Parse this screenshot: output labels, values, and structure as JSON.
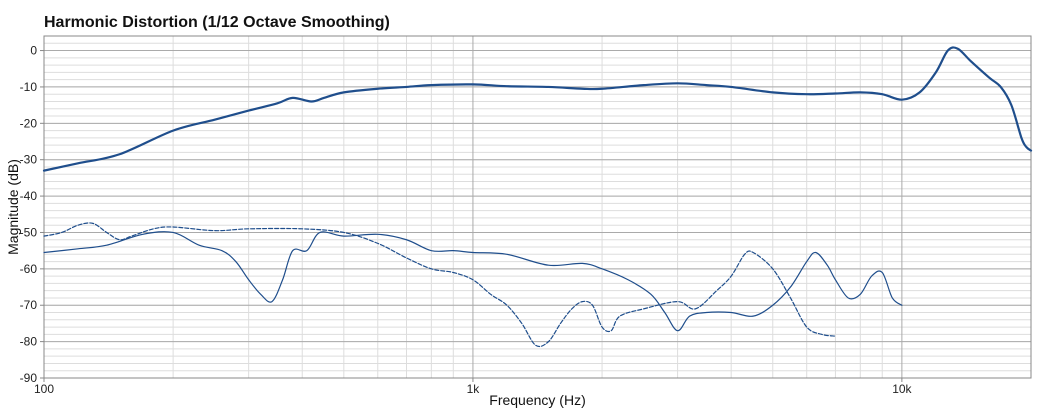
{
  "chart_data": {
    "type": "line",
    "title": "Harmonic Distortion (1/12 Octave Smoothing)",
    "xlabel": "Frequency (Hz)",
    "ylabel": "Magnitude (dB)",
    "x_scale": "log",
    "xlim": [
      100,
      20000
    ],
    "ylim": [
      -90,
      4
    ],
    "grid": true,
    "legend": "none",
    "x_ticks": [
      {
        "value": 100,
        "label": "100"
      },
      {
        "value": 1000,
        "label": "1k"
      },
      {
        "value": 10000,
        "label": "10k"
      }
    ],
    "y_ticks": [
      0,
      -10,
      -20,
      -30,
      -40,
      -50,
      -60,
      -70,
      -80,
      -90
    ],
    "colors": {
      "series": "#1f4e8c",
      "grid_major": "#aaaaaa",
      "grid_minor": "#dddddd",
      "frame": "#888888"
    },
    "series": [
      {
        "style": "solid-thick",
        "points": [
          [
            100,
            -33
          ],
          [
            120,
            -31
          ],
          [
            150,
            -28.5
          ],
          [
            200,
            -22
          ],
          [
            250,
            -19
          ],
          [
            300,
            -16.5
          ],
          [
            350,
            -14.5
          ],
          [
            380,
            -13
          ],
          [
            420,
            -14
          ],
          [
            450,
            -13
          ],
          [
            500,
            -11.5
          ],
          [
            600,
            -10.5
          ],
          [
            700,
            -10
          ],
          [
            800,
            -9.5
          ],
          [
            1000,
            -9.3
          ],
          [
            1200,
            -9.8
          ],
          [
            1500,
            -10
          ],
          [
            1800,
            -10.5
          ],
          [
            2000,
            -10.5
          ],
          [
            2500,
            -9.5
          ],
          [
            3000,
            -9
          ],
          [
            3500,
            -9.5
          ],
          [
            4000,
            -10
          ],
          [
            5000,
            -11.5
          ],
          [
            6000,
            -12
          ],
          [
            7000,
            -11.8
          ],
          [
            8000,
            -11.5
          ],
          [
            9000,
            -12
          ],
          [
            10000,
            -13.5
          ],
          [
            11000,
            -11.5
          ],
          [
            12000,
            -6
          ],
          [
            12800,
            0
          ],
          [
            13500,
            0.5
          ],
          [
            14500,
            -3
          ],
          [
            16000,
            -7.5
          ],
          [
            17000,
            -10
          ],
          [
            18000,
            -15
          ],
          [
            19000,
            -24
          ],
          [
            19500,
            -26.5
          ],
          [
            20000,
            -27.5
          ]
        ]
      },
      {
        "style": "solid-thin",
        "points": [
          [
            100,
            -55.5
          ],
          [
            120,
            -54.5
          ],
          [
            140,
            -53.5
          ],
          [
            170,
            -50.5
          ],
          [
            200,
            -50
          ],
          [
            230,
            -53.5
          ],
          [
            260,
            -55
          ],
          [
            280,
            -58
          ],
          [
            300,
            -63
          ],
          [
            320,
            -67
          ],
          [
            340,
            -69
          ],
          [
            360,
            -63
          ],
          [
            380,
            -55
          ],
          [
            410,
            -55
          ],
          [
            440,
            -50
          ],
          [
            500,
            -51
          ],
          [
            600,
            -50.5
          ],
          [
            700,
            -52
          ],
          [
            800,
            -55
          ],
          [
            900,
            -55
          ],
          [
            1000,
            -55.5
          ],
          [
            1200,
            -56
          ],
          [
            1500,
            -59
          ],
          [
            1800,
            -58.5
          ],
          [
            2000,
            -60
          ],
          [
            2300,
            -63
          ],
          [
            2600,
            -67
          ],
          [
            2800,
            -72
          ],
          [
            3000,
            -77
          ],
          [
            3200,
            -73
          ],
          [
            3500,
            -72
          ],
          [
            4000,
            -72
          ],
          [
            4500,
            -73
          ],
          [
            5000,
            -70
          ],
          [
            5500,
            -65
          ],
          [
            6000,
            -58
          ],
          [
            6300,
            -55.5
          ],
          [
            6700,
            -59
          ],
          [
            7000,
            -63
          ],
          [
            7500,
            -68
          ],
          [
            8000,
            -67
          ],
          [
            8500,
            -62
          ],
          [
            9000,
            -61
          ],
          [
            9500,
            -68
          ],
          [
            10000,
            -70
          ]
        ]
      },
      {
        "style": "dashed",
        "points": [
          [
            100,
            -51
          ],
          [
            110,
            -50
          ],
          [
            120,
            -48
          ],
          [
            130,
            -47.5
          ],
          [
            140,
            -50
          ],
          [
            150,
            -52
          ],
          [
            160,
            -51
          ],
          [
            180,
            -49
          ],
          [
            200,
            -48.5
          ],
          [
            250,
            -49.5
          ],
          [
            300,
            -49
          ],
          [
            400,
            -49
          ],
          [
            500,
            -50
          ],
          [
            600,
            -53
          ],
          [
            700,
            -57
          ],
          [
            800,
            -60
          ],
          [
            900,
            -61
          ],
          [
            1000,
            -63
          ],
          [
            1100,
            -67
          ],
          [
            1200,
            -70
          ],
          [
            1300,
            -75
          ],
          [
            1400,
            -81
          ],
          [
            1500,
            -80
          ],
          [
            1600,
            -75
          ],
          [
            1700,
            -71
          ],
          [
            1800,
            -69
          ],
          [
            1900,
            -70
          ],
          [
            2000,
            -76
          ],
          [
            2100,
            -77
          ],
          [
            2200,
            -73
          ],
          [
            2500,
            -71
          ],
          [
            3000,
            -69
          ],
          [
            3300,
            -71
          ],
          [
            3700,
            -66
          ],
          [
            4000,
            -62
          ],
          [
            4300,
            -56
          ],
          [
            4500,
            -55.5
          ],
          [
            5000,
            -60
          ],
          [
            5500,
            -68
          ],
          [
            6000,
            -76
          ],
          [
            6500,
            -78
          ],
          [
            7000,
            -78.5
          ]
        ]
      }
    ]
  }
}
